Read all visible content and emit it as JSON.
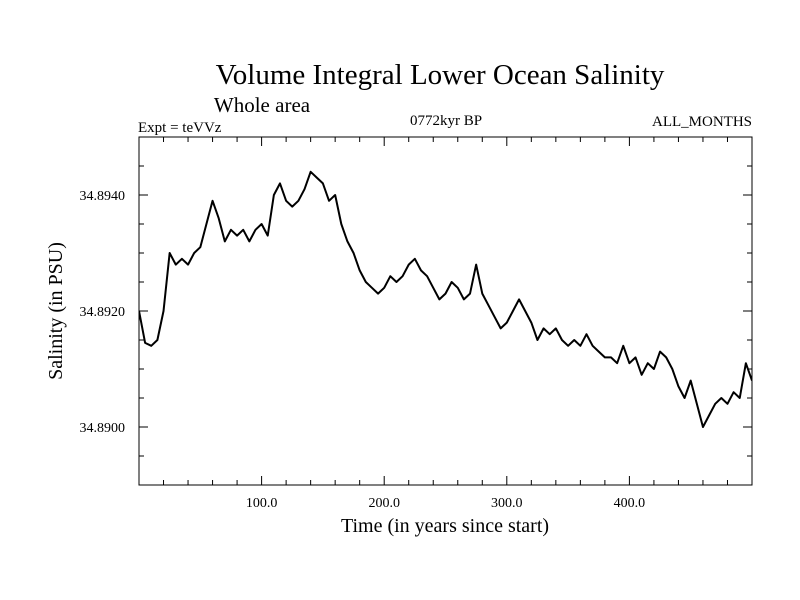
{
  "chart_data": {
    "type": "line",
    "title": "Volume Integral Lower Ocean Salinity",
    "subtitle": "Whole area",
    "annotations": {
      "left": "Expt = teVVz",
      "center": "0772kyr BP",
      "right": "ALL_MONTHS"
    },
    "xlabel": "Time (in years since start)",
    "ylabel": "Salinity (in PSU)",
    "xlim": [
      0,
      500
    ],
    "ylim": [
      34.889,
      34.895
    ],
    "xticks": [
      100,
      200,
      300,
      400
    ],
    "xtick_labels": [
      "100.0",
      "200.0",
      "300.0",
      "400.0"
    ],
    "yticks": [
      34.89,
      34.892,
      34.894
    ],
    "ytick_labels": [
      "34.8900",
      "34.8920",
      "34.8940"
    ],
    "grid": false,
    "legend": "none",
    "line_color": "#000000",
    "series": [
      {
        "x": [
          0,
          5,
          10,
          15,
          20,
          25,
          30,
          35,
          40,
          45,
          50,
          55,
          60,
          65,
          70,
          75,
          80,
          85,
          90,
          95,
          100,
          105,
          110,
          115,
          120,
          125,
          130,
          135,
          140,
          145,
          150,
          155,
          160,
          165,
          170,
          175,
          180,
          185,
          190,
          195,
          200,
          205,
          210,
          215,
          220,
          225,
          230,
          235,
          240,
          245,
          250,
          255,
          260,
          265,
          270,
          275,
          280,
          285,
          290,
          295,
          300,
          305,
          310,
          315,
          320,
          325,
          330,
          335,
          340,
          345,
          350,
          355,
          360,
          365,
          370,
          375,
          380,
          385,
          390,
          395,
          400,
          405,
          410,
          415,
          420,
          425,
          430,
          435,
          440,
          445,
          450,
          455,
          460,
          465,
          470,
          475,
          480,
          485,
          490,
          495,
          500
        ],
        "values": [
          34.892,
          34.89145,
          34.8914,
          34.8915,
          34.892,
          34.893,
          34.8928,
          34.8929,
          34.8928,
          34.893,
          34.8931,
          34.8935,
          34.8939,
          34.8936,
          34.8932,
          34.8934,
          34.8933,
          34.8934,
          34.8932,
          34.8934,
          34.8935,
          34.8933,
          34.894,
          34.8942,
          34.8939,
          34.8938,
          34.8939,
          34.8941,
          34.8944,
          34.8943,
          34.8942,
          34.8939,
          34.894,
          34.8935,
          34.8932,
          34.893,
          34.8927,
          34.8925,
          34.8924,
          34.8923,
          34.8924,
          34.8926,
          34.8925,
          34.8926,
          34.8928,
          34.8929,
          34.8927,
          34.8926,
          34.8924,
          34.8922,
          34.8923,
          34.8925,
          34.8924,
          34.8922,
          34.8923,
          34.8928,
          34.8923,
          34.8921,
          34.8919,
          34.8917,
          34.8918,
          34.892,
          34.8922,
          34.892,
          34.8918,
          34.8915,
          34.8917,
          34.8916,
          34.8917,
          34.8915,
          34.8914,
          34.8915,
          34.8914,
          34.8916,
          34.8914,
          34.8913,
          34.8912,
          34.8912,
          34.8911,
          34.8914,
          34.8911,
          34.8912,
          34.8909,
          34.8911,
          34.891,
          34.8913,
          34.8912,
          34.891,
          34.8907,
          34.8905,
          34.8908,
          34.8904,
          34.89,
          34.8902,
          34.8904,
          34.8905,
          34.8904,
          34.8906,
          34.8905,
          34.8911,
          34.8908
        ]
      }
    ]
  }
}
